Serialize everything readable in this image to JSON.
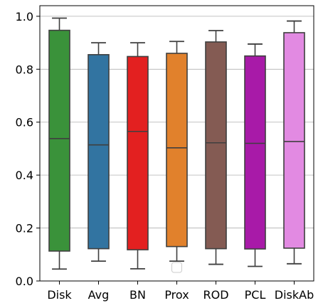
{
  "chart_data": {
    "type": "box",
    "categories": [
      "Disk",
      "Avg",
      "BN",
      "Prox",
      "ROD",
      "PCL",
      "DiskAb"
    ],
    "colors": [
      "#3a923a",
      "#3274a1",
      "#e32020",
      "#e1812c",
      "#845b53",
      "#a81aa8",
      "#e28ae2"
    ],
    "boxes": [
      {
        "whisker_low": 0.045,
        "q1": 0.113,
        "median": 0.538,
        "q3": 0.947,
        "whisker_high": 0.993
      },
      {
        "whisker_low": 0.075,
        "q1": 0.122,
        "median": 0.514,
        "q3": 0.855,
        "whisker_high": 0.9
      },
      {
        "whisker_low": 0.046,
        "q1": 0.118,
        "median": 0.565,
        "q3": 0.848,
        "whisker_high": 0.9
      },
      {
        "whisker_low": 0.075,
        "q1": 0.13,
        "median": 0.503,
        "q3": 0.86,
        "whisker_high": 0.905
      },
      {
        "whisker_low": 0.063,
        "q1": 0.122,
        "median": 0.522,
        "q3": 0.903,
        "whisker_high": 0.946
      },
      {
        "whisker_low": 0.055,
        "q1": 0.121,
        "median": 0.52,
        "q3": 0.85,
        "whisker_high": 0.895
      },
      {
        "whisker_low": 0.065,
        "q1": 0.124,
        "median": 0.527,
        "q3": 0.938,
        "whisker_high": 0.982
      }
    ],
    "ylim": [
      0.0,
      1.04
    ],
    "yticks": [
      "0.0",
      "0.2",
      "0.4",
      "0.6",
      "0.8",
      "1.0"
    ],
    "ytick_values": [
      0.0,
      0.2,
      0.4,
      0.6,
      0.8,
      1.0
    ],
    "grid": "horizontal",
    "legend": "bottom-center (empty)",
    "title": "",
    "xlabel": "",
    "ylabel": ""
  }
}
